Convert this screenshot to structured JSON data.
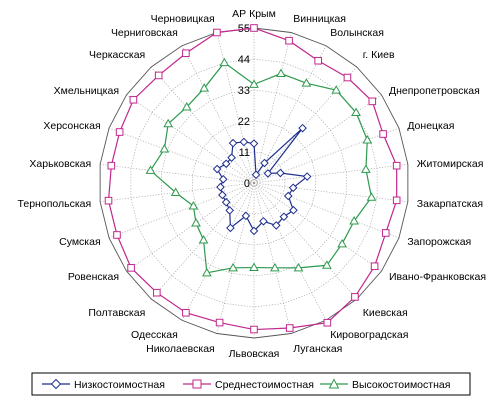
{
  "chart_data": {
    "type": "radar",
    "title": "",
    "categories": [
      "АР Крым",
      "Винницкая",
      "Волынская",
      "г. Киев",
      "Днепропетровская",
      "Донецкая",
      "Житомирская",
      "Закарпатская",
      "Запорожская",
      "Ивано-Франковская",
      "Киевская",
      "Кировоградская",
      "Луганская",
      "Львовская",
      "Николаевская",
      "Одесская",
      "Полтавская",
      "Ровенская",
      "Сумская",
      "Тернопольская",
      "Харьковская",
      "Херсонская",
      "Хмельницкая",
      "Черкасская",
      "Черниговская",
      "Черновицкая"
    ],
    "radial_ticks": [
      0,
      11,
      22,
      33,
      44,
      55
    ],
    "rmax": 55,
    "grid": true,
    "legend_position": "bottom",
    "series": [
      {
        "name": "Низкостоимостная",
        "color": "#1f2f8f",
        "marker": "diamond",
        "values": [
          14,
          3,
          8,
          26,
          6,
          10,
          19,
          14,
          13,
          17,
          16,
          17,
          14,
          17,
          12,
          18,
          13,
          12,
          12,
          12,
          11,
          14,
          12,
          12,
          16,
          15
        ]
      },
      {
        "name": "Среднестоимостная",
        "color": "#c1278d",
        "marker": "square",
        "values": [
          55,
          52,
          49,
          50,
          51,
          49,
          51,
          51,
          50,
          52,
          54,
          56,
          53,
          52,
          51,
          52,
          52,
          53,
          52,
          52,
          51,
          51,
          52,
          51,
          52,
          55
        ]
      },
      {
        "name": "Высокостоимостная",
        "color": "#2e9a4e",
        "marker": "triangle",
        "values": [
          35,
          40,
          40,
          44,
          44,
          43,
          40,
          42,
          38,
          38,
          39,
          34,
          31,
          30,
          31,
          36,
          27,
          25,
          23,
          28,
          37,
          34,
          37,
          36,
          38,
          44
        ]
      }
    ]
  }
}
